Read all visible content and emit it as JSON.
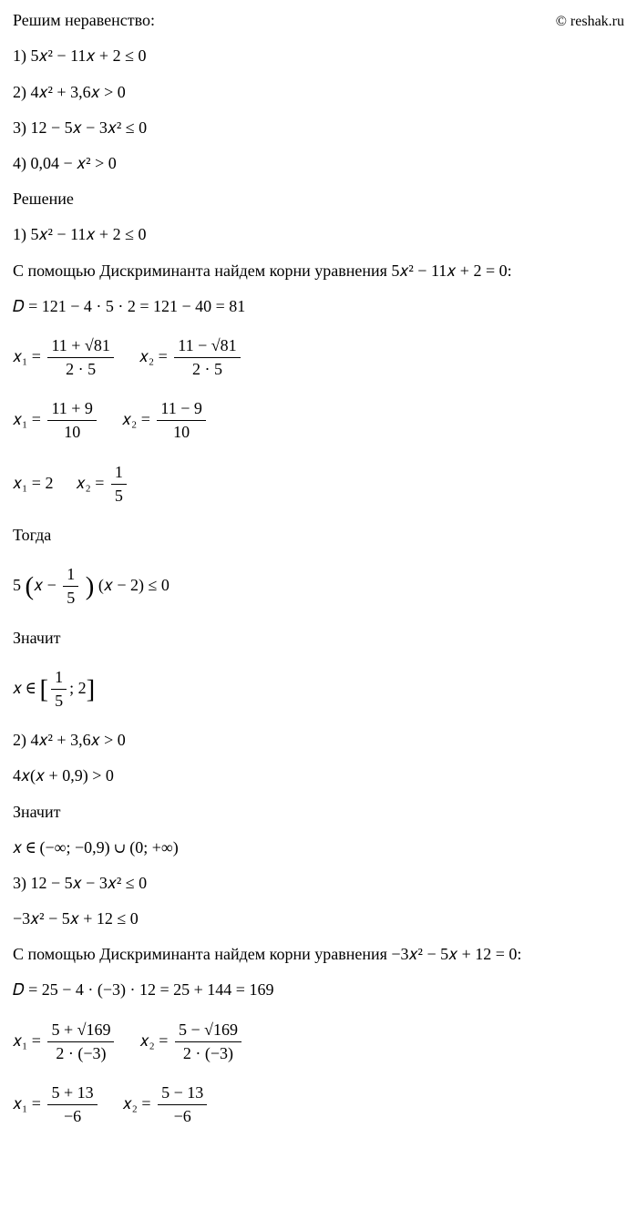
{
  "header": {
    "title": "Решим неравенство:",
    "watermark": "© reshak.ru"
  },
  "problems": {
    "p1": "1) 5𝑥² − 11𝑥 + 2 ≤ 0",
    "p2": "2) 4𝑥² + 3,6𝑥 > 0",
    "p3": "3) 12 − 5𝑥 − 3𝑥² ≤ 0",
    "p4": "4) 0,04 − 𝑥² > 0"
  },
  "solution_label": "Решение",
  "s1": {
    "restate": "1) 5𝑥² − 11𝑥 + 2 ≤ 0",
    "disc_intro": "С помощью Дискриминанта найдем корни уравнения 5𝑥² − 11𝑥 + 2 = 0:",
    "disc": "𝐷 = 121 − 4 · 5 · 2 = 121 − 40 = 81",
    "x1f1_num": "11 + √81",
    "x1f1_den": "2 · 5",
    "x2f1_num": "11 − √81",
    "x2f1_den": "2 · 5",
    "x1f2_num": "11 + 9",
    "x1f2_den": "10",
    "x2f2_num": "11 − 9",
    "x2f2_den": "10",
    "x1_final": "𝑥₁ = 2",
    "x2_final_num": "1",
    "x2_final_den": "5",
    "then": "Тогда",
    "factor_pre": "5",
    "factor_inner_num": "1",
    "factor_inner_den": "5",
    "factor_rest": "(𝑥 − 2) ≤ 0",
    "means": "Значит",
    "interval_pre": "𝑥 ∈",
    "interval_a_num": "1",
    "interval_a_den": "5",
    "interval_b": "; 2"
  },
  "s2": {
    "restate": "2) 4𝑥² + 3,6𝑥 > 0",
    "factor": "4𝑥(𝑥 + 0,9) > 0",
    "means": "Значит",
    "interval": "𝑥 ∈ (−∞; −0,9) ∪ (0; +∞)"
  },
  "s3": {
    "restate": "3) 12 − 5𝑥 − 3𝑥² ≤ 0",
    "rearranged": "−3𝑥² − 5𝑥 + 12 ≤ 0",
    "disc_intro": "С помощью Дискриминанта найдем корни уравнения −3𝑥² − 5𝑥 + 12 = 0:",
    "disc": "𝐷 = 25 − 4 · (−3) · 12 = 25 + 144 = 169",
    "x1f1_num": "5 + √169",
    "x1f1_den": "2 · (−3)",
    "x2f1_num": "5 − √169",
    "x2f1_den": "2 · (−3)",
    "x1f2_num": "5 + 13",
    "x1f2_den": "−6",
    "x2f2_num": "5 − 13",
    "x2f2_den": "−6"
  },
  "labels": {
    "x1eq": "𝑥₁ =",
    "x2eq": "𝑥₂ ="
  }
}
